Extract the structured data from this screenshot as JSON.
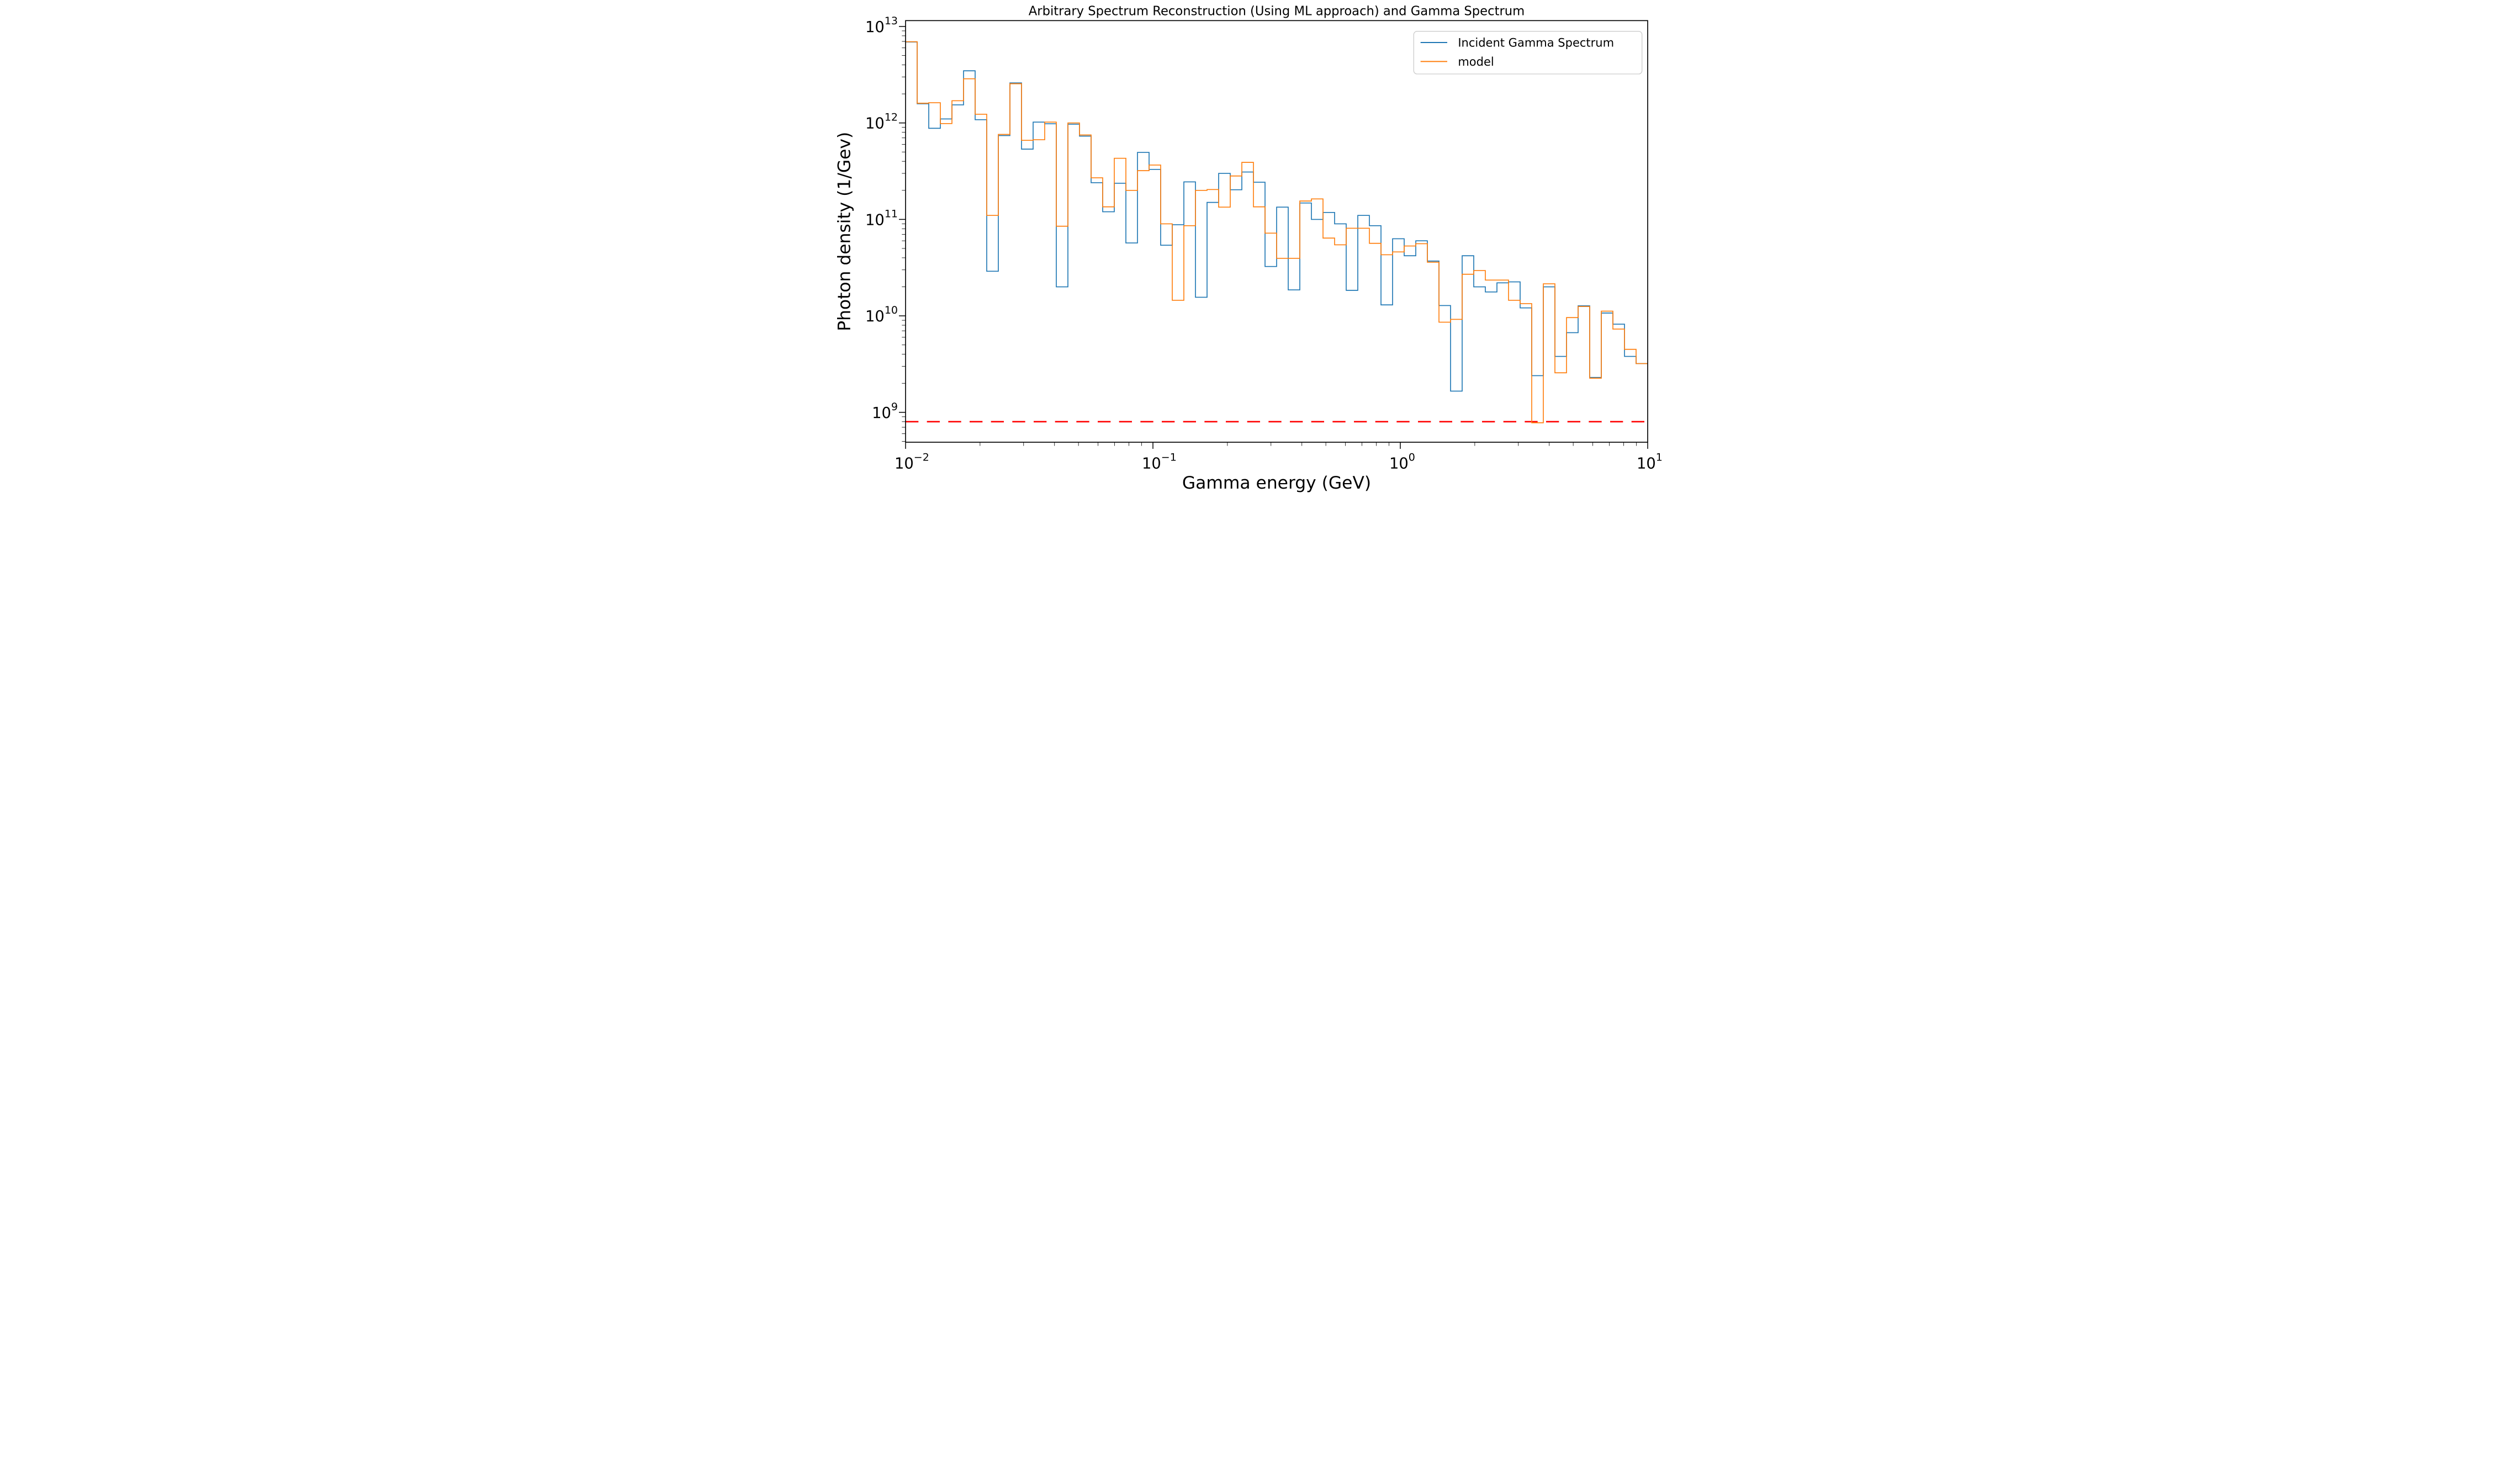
{
  "title": "Arbitrary Spectrum Reconstruction (Using ML approach) and Gamma Spectrum",
  "axes": {
    "xlabel": "Gamma energy (GeV)",
    "ylabel": "Photon density (1/Gev)"
  },
  "legend": {
    "position": "upper right",
    "items": [
      {
        "label": "Incident Gamma Spectrum",
        "color": "#1f77b4"
      },
      {
        "label": "model",
        "color": "#ff7f0e"
      }
    ]
  },
  "chart_data": {
    "type": "line",
    "subtype": "log-log step histogram",
    "title": "Arbitrary Spectrum Reconstruction (Using ML approach) and Gamma Spectrum",
    "xlabel": "Gamma energy (GeV)",
    "ylabel": "Photon density (1/Gev)",
    "xlim": [
      0.01,
      10
    ],
    "ylim": [
      490000000.0,
      11500000000000.0
    ],
    "grid": false,
    "x_tick_exponents": [
      -2,
      -1,
      0,
      1
    ],
    "y_tick_exponents": [
      9,
      10,
      11,
      12,
      13
    ],
    "bins": {
      "log10_start": -2,
      "log10_end": 1,
      "count": 64
    },
    "series": [
      {
        "name": "Incident Gamma Spectrum",
        "color": "#1f77b4",
        "values": [
          6900000000000.0,
          1580000000000.0,
          880000000000.0,
          1100000000000.0,
          1540000000000.0,
          3470000000000.0,
          1080000000000.0,
          29000000000.0,
          740000000000.0,
          2600000000000.0,
          535000000000.0,
          1020000000000.0,
          980000000000.0,
          20000000000.0,
          970000000000.0,
          730000000000.0,
          240000000000.0,
          120000000000.0,
          237000000000.0,
          57000000000.0,
          495000000000.0,
          330000000000.0,
          54000000000.0,
          88000000000.0,
          245000000000.0,
          15600000000.0,
          150000000000.0,
          300000000000.0,
          203000000000.0,
          310000000000.0,
          243000000000.0,
          32500000000.0,
          134000000000.0,
          18600000000.0,
          148000000000.0,
          100000000000.0,
          118000000000.0,
          90000000000.0,
          18400000000.0,
          110000000000.0,
          86000000000.0,
          13000000000.0,
          63000000000.0,
          42000000000.0,
          60000000000.0,
          37000000000.0,
          12800000000.0,
          1660000000.0,
          42000000000.0,
          20000000000.0,
          17700000000.0,
          22000000000.0,
          22500000000.0,
          12100000000.0,
          2400000000.0,
          20000000000.0,
          3800000000.0,
          6700000000.0,
          12700000000.0,
          2300000000.0,
          10700000000.0,
          8200000000.0,
          3800000000.0,
          3200000000.0
        ]
      },
      {
        "name": "model",
        "color": "#ff7f0e",
        "values": [
          6950000000000.0,
          1600000000000.0,
          1620000000000.0,
          985000000000.0,
          1700000000000.0,
          2870000000000.0,
          1230000000000.0,
          110000000000.0,
          760000000000.0,
          2550000000000.0,
          660000000000.0,
          670000000000.0,
          1020000000000.0,
          85000000000.0,
          1000000000000.0,
          750000000000.0,
          270000000000.0,
          135000000000.0,
          430000000000.0,
          200000000000.0,
          320000000000.0,
          366000000000.0,
          90000000000.0,
          14500000000.0,
          86000000000.0,
          200000000000.0,
          204000000000.0,
          134000000000.0,
          282000000000.0,
          390000000000.0,
          135000000000.0,
          72000000000.0,
          39500000000.0,
          39500000000.0,
          155000000000.0,
          163000000000.0,
          64000000000.0,
          54500000000.0,
          81000000000.0,
          81000000000.0,
          56500000000.0,
          43000000000.0,
          46000000000.0,
          53000000000.0,
          56000000000.0,
          36000000000.0,
          8600000000.0,
          9200000000.0,
          27000000000.0,
          29500000000.0,
          23500000000.0,
          23500000000.0,
          14500000000.0,
          13400000000.0,
          780000000.0,
          21500000000.0,
          2570000000.0,
          9600000000.0,
          12500000000.0,
          2260000000.0,
          11200000000.0,
          7300000000.0,
          4500000000.0,
          3200000000.0
        ]
      }
    ],
    "threshold_line": {
      "value": 800000000.0,
      "color": "#ff0000",
      "style": "dashed"
    },
    "legend_entries": [
      "Incident Gamma Spectrum",
      "model"
    ]
  }
}
